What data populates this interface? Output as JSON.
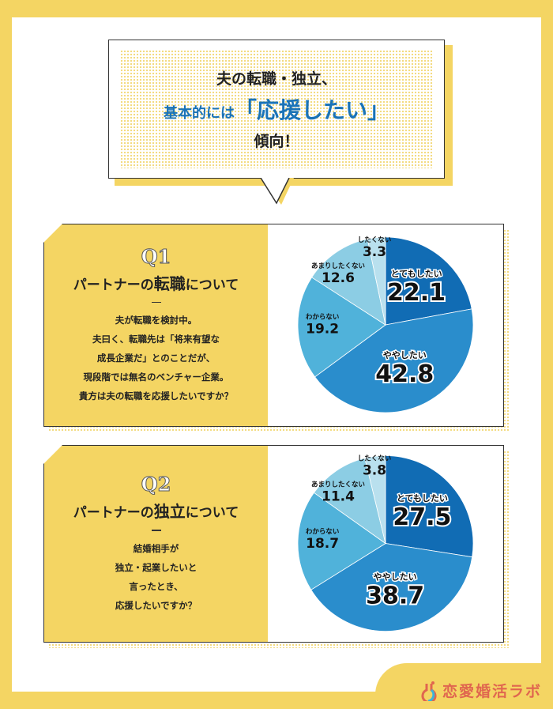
{
  "headline": {
    "line1": "夫の転職・独立、",
    "line2_prefix": "基本的には",
    "line2_emph": "「応援したい」",
    "line3": "傾向！"
  },
  "logo": {
    "text": "恋愛婚活ラボ"
  },
  "colors": {
    "yellow": "#f4d563",
    "blue_dark": "#116cb4",
    "blue": "#2a8dcc",
    "blue_mid": "#50b2da",
    "blue_light": "#8ccde4",
    "blue_pale": "#b9e0ee"
  },
  "questions": [
    {
      "number": "Q1",
      "title_pre": "パートナーの",
      "title_emph": "転職",
      "title_post": "について",
      "body": [
        "夫が転職を検討中。",
        "夫曰く、転職先は「将来有望な",
        "成長企業だ」とのことだが、",
        "現段階では無名のベンチャー企業。",
        "貴方は夫の転職を応援したいですか？"
      ]
    },
    {
      "number": "Q2",
      "title_pre": "パートナーの",
      "title_emph": "独立",
      "title_post": "について",
      "body": [
        "結婚相手が",
        "独立・起業したいと",
        "言ったとき、",
        "応援したいですか？"
      ]
    }
  ],
  "chart_data": [
    {
      "type": "pie",
      "title": "パートナーの転職について",
      "categories": [
        "とてもしたい",
        "ややしたい",
        "わからない",
        "あまりしたくない",
        "したくない"
      ],
      "values": [
        22.1,
        42.8,
        19.2,
        12.6,
        3.3
      ],
      "labels": [
        "22.1",
        "42.8",
        "19.2",
        "12.6",
        "3.3"
      ]
    },
    {
      "type": "pie",
      "title": "パートナーの独立について",
      "categories": [
        "とてもしたい",
        "ややしたい",
        "わからない",
        "あまりしたくない",
        "したくない"
      ],
      "values": [
        27.5,
        38.7,
        18.7,
        11.4,
        3.8
      ],
      "labels": [
        "27.5",
        "38.7",
        "18.7",
        "11.4",
        "3.8"
      ]
    }
  ]
}
